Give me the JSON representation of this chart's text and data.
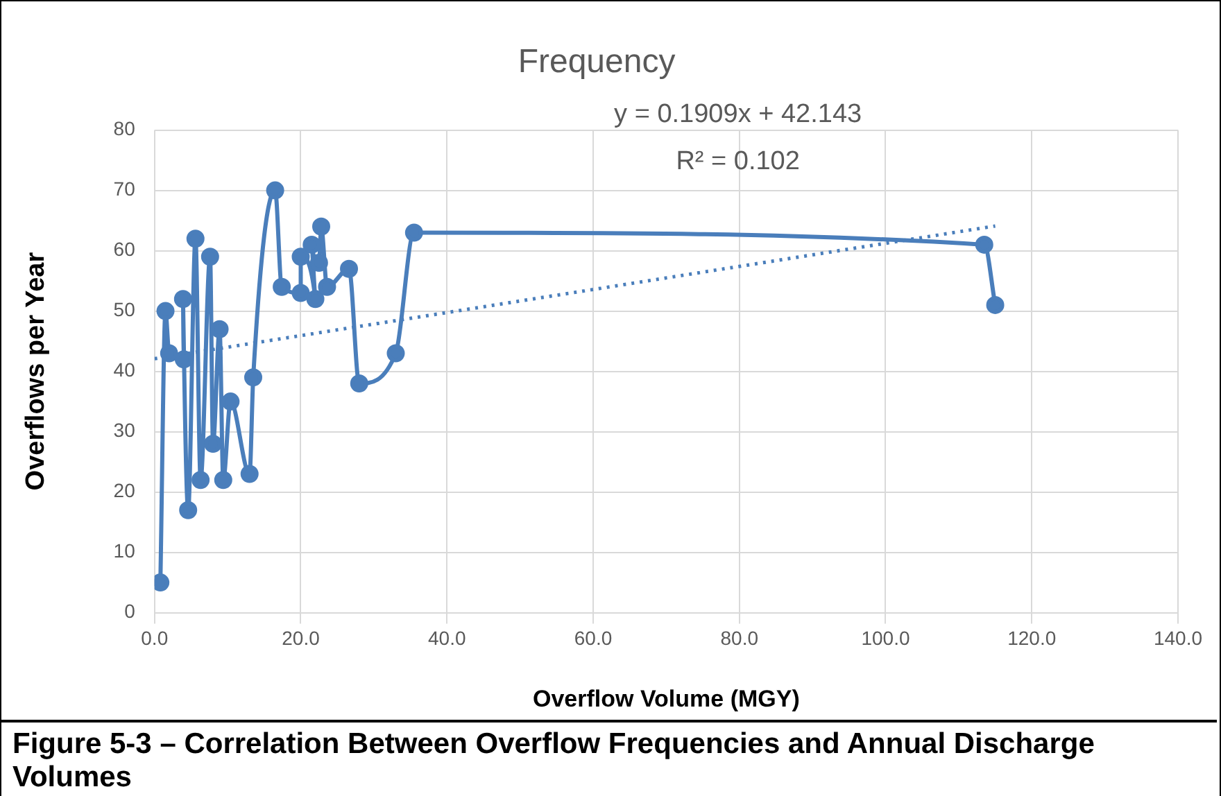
{
  "chart_data": {
    "type": "line",
    "title": "Frequency",
    "xlabel": "Overflow Volume (MGY)",
    "ylabel": "Overflows per Year",
    "annotations": [
      "y = 0.1909x + 42.143",
      "R² = 0.102",
      "Figure 5-3 – Correlation Between Overflow Frequencies and Annual Discharge Volumes"
    ],
    "series": [
      {
        "color": "#4a7ebb",
        "marker": "circle",
        "x": [
          0.8,
          1.5,
          2,
          4,
          3.9,
          4.6,
          5.6,
          6.3,
          7.6,
          8,
          8.9,
          9.4,
          10.4,
          13,
          13.5,
          16.5,
          17.4,
          20,
          20,
          22,
          21.5,
          22.5,
          22.8,
          23.6,
          26.6,
          28,
          33,
          35.5,
          113.5,
          115
        ],
        "values": [
          5,
          50,
          43,
          42,
          52,
          17,
          62,
          22,
          59,
          28,
          47,
          22,
          35,
          23,
          39,
          70,
          54,
          53,
          59,
          52,
          61,
          58,
          64,
          54,
          57,
          38,
          43,
          63,
          61,
          51
        ]
      },
      {
        "type": "line",
        "color": "#4a7ebb",
        "marker": "none",
        "line_style": "dotted",
        "x": [
          0,
          115
        ],
        "values": [
          42.1,
          64.1
        ]
      }
    ],
    "xlim": [
      0,
      140
    ],
    "xticks": [
      {
        "value": 0,
        "label": "0.0"
      },
      {
        "value": 20,
        "label": "20.0"
      },
      {
        "value": 40,
        "label": "40.0"
      },
      {
        "value": 60,
        "label": "60.0"
      },
      {
        "value": 80,
        "label": "80.0"
      },
      {
        "value": 100,
        "label": "100.0"
      },
      {
        "value": 120,
        "label": "120.0"
      },
      {
        "value": 140,
        "label": "140.0"
      }
    ],
    "ylim": [
      0,
      80
    ],
    "yticks": [
      0,
      10,
      20,
      30,
      40,
      50,
      60,
      70,
      80
    ],
    "grid": true,
    "legend": false
  }
}
